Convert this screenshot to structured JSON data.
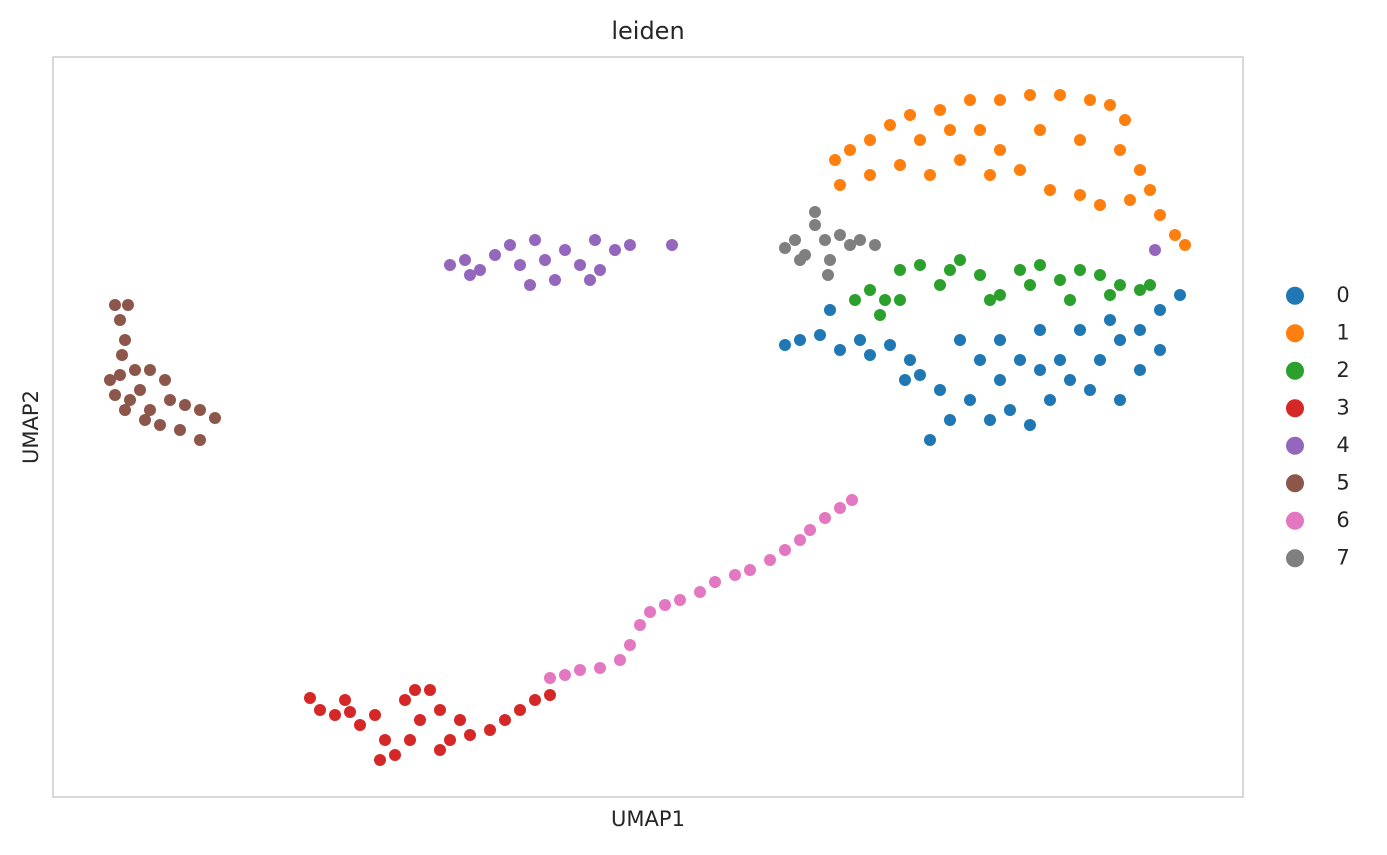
{
  "chart_data": {
    "type": "scatter",
    "title": "leiden",
    "x_label": "UMAP1",
    "y_label": "UMAP2",
    "xlim": [
      0,
      11.9
    ],
    "ylim": [
      0,
      7.4
    ],
    "grid": false,
    "legend": "right",
    "series": [
      {
        "name": "0",
        "color": "#1f77b4",
        "x": [
          7.32,
          7.47,
          7.67,
          7.87,
          8.07,
          7.77,
          8.17,
          8.37,
          8.57,
          8.67,
          8.87,
          8.77,
          8.97,
          9.17,
          9.37,
          9.57,
          9.77,
          9.97,
          10.17,
          10.37,
          10.47,
          10.67,
          10.87,
          11.07,
          11.27,
          9.47,
          9.87,
          10.27,
          9.07,
          9.67,
          10.07,
          10.57,
          9.47,
          9.87,
          9.27,
          11.07,
          10.87,
          8.52,
          10.67
        ],
        "y": [
          4.52,
          4.57,
          4.62,
          4.47,
          4.57,
          4.87,
          4.42,
          4.52,
          4.37,
          4.22,
          4.07,
          3.57,
          3.77,
          3.97,
          3.77,
          3.87,
          3.72,
          3.97,
          4.17,
          4.07,
          4.37,
          4.57,
          4.67,
          4.87,
          5.02,
          4.57,
          4.67,
          4.67,
          4.57,
          4.37,
          4.37,
          4.77,
          4.17,
          4.27,
          4.37,
          4.47,
          4.27,
          4.17,
          3.97
        ]
      },
      {
        "name": "1",
        "color": "#ff7f0e",
        "x": [
          7.82,
          7.97,
          8.17,
          8.37,
          8.57,
          8.87,
          9.17,
          9.47,
          9.77,
          10.07,
          10.37,
          10.57,
          10.72,
          10.67,
          10.87,
          10.97,
          11.07,
          11.22,
          11.32,
          10.77,
          10.47,
          10.27,
          9.97,
          9.67,
          9.37,
          9.07,
          8.77,
          8.47,
          8.17,
          7.87,
          8.67,
          9.27,
          9.87,
          10.27,
          9.47,
          8.97
        ],
        "y": [
          6.37,
          6.47,
          6.57,
          6.72,
          6.82,
          6.87,
          6.97,
          6.97,
          7.02,
          7.02,
          6.97,
          6.92,
          6.77,
          6.47,
          6.27,
          6.07,
          5.82,
          5.62,
          5.52,
          5.97,
          5.92,
          6.02,
          6.07,
          6.27,
          6.22,
          6.37,
          6.22,
          6.32,
          6.22,
          6.12,
          6.57,
          6.67,
          6.67,
          6.57,
          6.47,
          6.67
        ]
      },
      {
        "name": "2",
        "color": "#2ca02c",
        "x": [
          8.02,
          8.17,
          8.32,
          8.47,
          8.67,
          8.87,
          9.07,
          9.27,
          9.47,
          9.67,
          9.87,
          10.07,
          10.27,
          10.47,
          10.67,
          10.87,
          10.97,
          8.47,
          8.27,
          9.37,
          9.77,
          10.17,
          10.57,
          8.97
        ],
        "y": [
          4.97,
          5.07,
          4.97,
          5.27,
          5.32,
          5.12,
          5.37,
          5.22,
          5.02,
          5.27,
          5.32,
          5.17,
          5.27,
          5.22,
          5.12,
          5.07,
          5.12,
          4.97,
          4.82,
          4.97,
          5.12,
          4.97,
          5.02,
          5.27
        ]
      },
      {
        "name": "3",
        "color": "#d62728",
        "x": [
          2.57,
          2.67,
          2.82,
          2.97,
          3.07,
          3.22,
          3.32,
          3.42,
          3.52,
          3.62,
          3.77,
          3.67,
          3.57,
          3.87,
          3.97,
          4.17,
          4.37,
          4.52,
          4.67,
          4.82,
          4.97,
          3.27,
          3.87,
          4.07,
          2.92
        ],
        "y": [
          0.99,
          0.87,
          0.82,
          0.85,
          0.72,
          0.82,
          0.57,
          0.42,
          0.97,
          1.07,
          1.07,
          0.77,
          0.57,
          0.47,
          0.57,
          0.62,
          0.67,
          0.77,
          0.87,
          0.97,
          1.02,
          0.37,
          0.87,
          0.77,
          0.97
        ]
      },
      {
        "name": "4",
        "color": "#9467bd",
        "x": [
          3.97,
          4.12,
          4.27,
          4.42,
          4.57,
          4.67,
          4.82,
          4.92,
          5.02,
          5.12,
          5.27,
          5.42,
          5.47,
          5.62,
          5.77,
          4.17,
          4.77,
          5.37,
          6.19,
          11.02
        ],
        "y": [
          5.32,
          5.37,
          5.27,
          5.42,
          5.52,
          5.32,
          5.57,
          5.37,
          5.17,
          5.47,
          5.32,
          5.57,
          5.27,
          5.47,
          5.52,
          5.22,
          5.12,
          5.17,
          5.52,
          5.47
        ]
      },
      {
        "name": "5",
        "color": "#8c564b",
        "x": [
          0.62,
          0.75,
          0.67,
          0.72,
          0.69,
          0.57,
          0.67,
          0.82,
          0.97,
          1.12,
          0.87,
          0.62,
          0.77,
          0.97,
          1.17,
          1.32,
          1.47,
          1.62,
          1.07,
          1.27,
          1.47,
          0.72,
          0.92
        ],
        "y": [
          4.92,
          4.92,
          4.77,
          4.57,
          4.42,
          4.17,
          4.22,
          4.27,
          4.27,
          4.17,
          4.07,
          4.02,
          3.97,
          3.87,
          3.97,
          3.92,
          3.87,
          3.79,
          3.72,
          3.67,
          3.57,
          3.87,
          3.77
        ]
      },
      {
        "name": "6",
        "color": "#e377c2",
        "x": [
          4.97,
          5.12,
          5.27,
          5.47,
          5.67,
          5.77,
          5.87,
          5.97,
          6.12,
          6.27,
          6.47,
          6.62,
          6.82,
          6.97,
          7.17,
          7.32,
          7.47,
          7.57,
          7.72,
          7.87,
          7.99
        ],
        "y": [
          1.19,
          1.22,
          1.27,
          1.29,
          1.37,
          1.52,
          1.72,
          1.85,
          1.92,
          1.97,
          2.05,
          2.15,
          2.22,
          2.27,
          2.37,
          2.47,
          2.57,
          2.67,
          2.79,
          2.89,
          2.97
        ]
      },
      {
        "name": "7",
        "color": "#7f7f7f",
        "x": [
          7.32,
          7.42,
          7.52,
          7.62,
          7.62,
          7.72,
          7.77,
          7.87,
          7.97,
          8.07,
          8.22,
          7.47,
          7.75
        ],
        "y": [
          5.49,
          5.57,
          5.42,
          5.72,
          5.85,
          5.57,
          5.37,
          5.62,
          5.52,
          5.57,
          5.52,
          5.37,
          5.22
        ]
      }
    ]
  }
}
